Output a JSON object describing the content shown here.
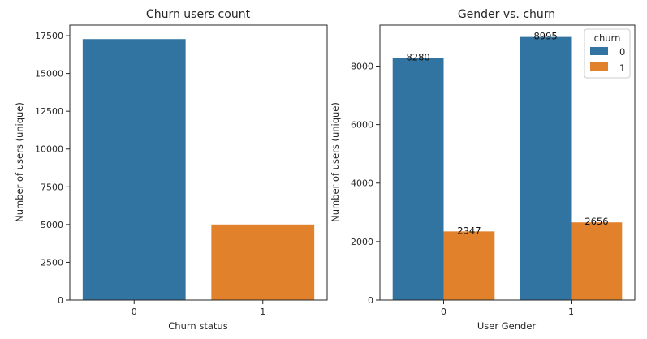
{
  "colors": {
    "series0": "#3274a1",
    "series1": "#e1812c"
  },
  "chart_data": [
    {
      "type": "bar",
      "title": "Churn users count",
      "xlabel": "Churn status",
      "ylabel": "Number of users (unique)",
      "categories": [
        "0",
        "1"
      ],
      "values": [
        17275,
        5003
      ],
      "ylim": [
        0,
        18200
      ],
      "yticks": [
        0,
        2500,
        5000,
        7500,
        10000,
        12500,
        15000,
        17500
      ],
      "ytick_labels": [
        "0",
        "2500",
        "5000",
        "7500",
        "10000",
        "12500",
        "15000",
        "17500"
      ],
      "grid": false
    },
    {
      "type": "bar",
      "title": "Gender vs. churn",
      "xlabel": "User Gender",
      "ylabel": "Number of users (unique)",
      "categories": [
        "0",
        "1"
      ],
      "series": [
        {
          "name": "0",
          "values": [
            8280,
            8995
          ],
          "labels": [
            "8280",
            "8995"
          ]
        },
        {
          "name": "1",
          "values": [
            2347,
            2656
          ],
          "labels": [
            "2347",
            "2656"
          ]
        }
      ],
      "legend_title": "churn",
      "legend_position": "top-right",
      "ylim": [
        0,
        9400
      ],
      "yticks": [
        0,
        2000,
        4000,
        6000,
        8000
      ],
      "ytick_labels": [
        "0",
        "2000",
        "4000",
        "6000",
        "8000"
      ],
      "grid": false
    }
  ]
}
